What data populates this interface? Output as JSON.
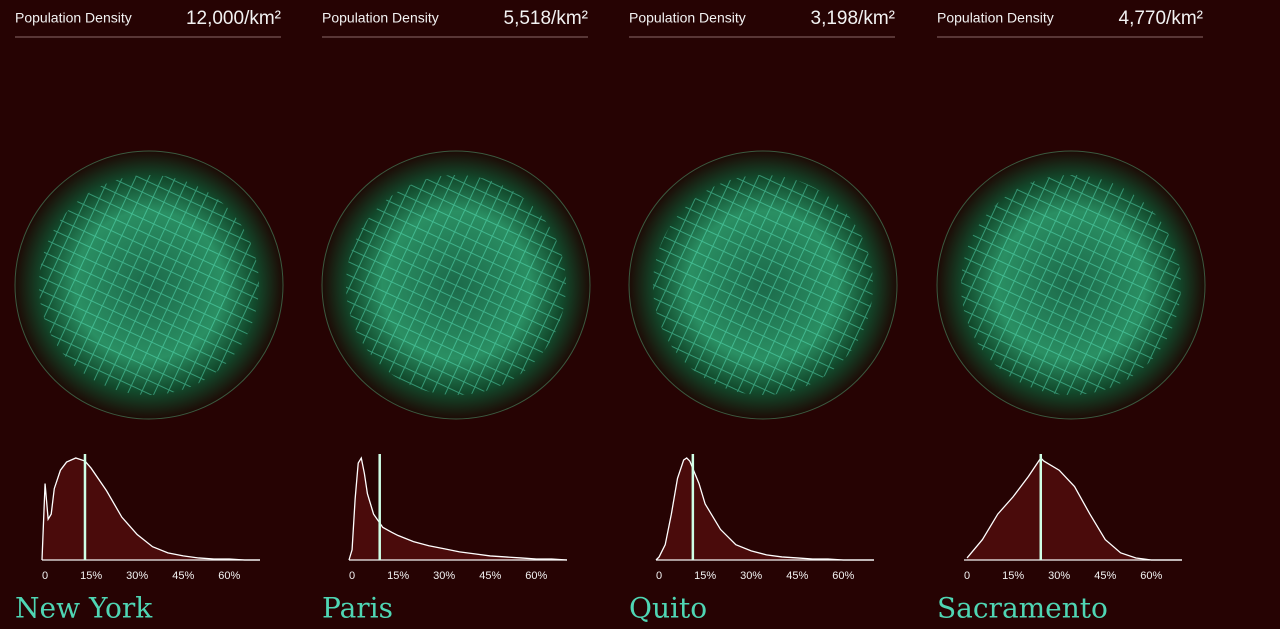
{
  "chart_data": [
    {
      "type": "area",
      "header": "Population Density",
      "density": {
        "value": 12000,
        "label": "12,000/km²"
      },
      "title": "New York",
      "x": [
        -1,
        0,
        1,
        2,
        3,
        5,
        7,
        10,
        13,
        15,
        20,
        25,
        30,
        35,
        40,
        45,
        50,
        55,
        60,
        65,
        70
      ],
      "values": [
        0,
        75,
        40,
        45,
        70,
        88,
        96,
        100,
        97,
        90,
        68,
        42,
        25,
        13,
        7,
        4,
        2,
        1,
        1,
        0,
        0
      ],
      "marker": 13,
      "xlim": [
        -1,
        70
      ],
      "ylim": [
        0,
        100
      ],
      "xticks": [
        0,
        {
          "value": 15,
          "label": "15%"
        },
        {
          "value": 30,
          "label": "30%"
        },
        {
          "value": 45,
          "label": "45%"
        },
        {
          "value": 60,
          "label": "60%"
        }
      ]
    },
    {
      "type": "area",
      "header": "Population Density",
      "density": {
        "value": 5518,
        "label": "5,518/km²"
      },
      "title": "Paris",
      "x": [
        -1,
        0,
        1,
        2,
        3,
        4,
        5,
        7,
        10,
        13,
        15,
        20,
        25,
        30,
        35,
        40,
        45,
        50,
        55,
        60,
        65,
        70
      ],
      "values": [
        0,
        10,
        60,
        95,
        100,
        85,
        65,
        45,
        32,
        27,
        24,
        18,
        14,
        11,
        8,
        6,
        4,
        3,
        2,
        1,
        1,
        0
      ],
      "marker": 9,
      "xlim": [
        -1,
        70
      ],
      "ylim": [
        0,
        100
      ],
      "xticks": [
        0,
        {
          "value": 15,
          "label": "15%"
        },
        {
          "value": 30,
          "label": "30%"
        },
        {
          "value": 45,
          "label": "45%"
        },
        {
          "value": 60,
          "label": "60%"
        }
      ]
    },
    {
      "type": "area",
      "header": "Population Density",
      "density": {
        "value": 3198,
        "label": "3,198/km²"
      },
      "title": "Quito",
      "x": [
        -1,
        0,
        2,
        4,
        6,
        8,
        9,
        10,
        13,
        15,
        20,
        25,
        30,
        35,
        40,
        45,
        50,
        55,
        60,
        70
      ],
      "values": [
        0,
        3,
        15,
        45,
        80,
        98,
        100,
        97,
        75,
        55,
        30,
        15,
        9,
        5,
        3,
        2,
        1,
        1,
        0,
        0
      ],
      "marker": 11,
      "xlim": [
        -1,
        70
      ],
      "ylim": [
        0,
        100
      ],
      "xticks": [
        0,
        {
          "value": 15,
          "label": "15%"
        },
        {
          "value": 30,
          "label": "30%"
        },
        {
          "value": 45,
          "label": "45%"
        },
        {
          "value": 60,
          "label": "60%"
        }
      ]
    },
    {
      "type": "area",
      "header": "Population Density",
      "density": {
        "value": 4770,
        "label": "4,770/km²"
      },
      "title": "Sacramento",
      "x": [
        0,
        5,
        10,
        15,
        20,
        24,
        25,
        30,
        35,
        40,
        45,
        50,
        55,
        60,
        70
      ],
      "values": [
        2,
        20,
        45,
        62,
        82,
        100,
        97,
        88,
        72,
        45,
        20,
        7,
        2,
        0,
        0
      ],
      "marker": 24,
      "xlim": [
        -1,
        70
      ],
      "ylim": [
        0,
        100
      ],
      "xticks": [
        0,
        {
          "value": 15,
          "label": "15%"
        },
        {
          "value": 30,
          "label": "30%"
        },
        {
          "value": 45,
          "label": "45%"
        },
        {
          "value": 60,
          "label": "60%"
        }
      ]
    }
  ]
}
